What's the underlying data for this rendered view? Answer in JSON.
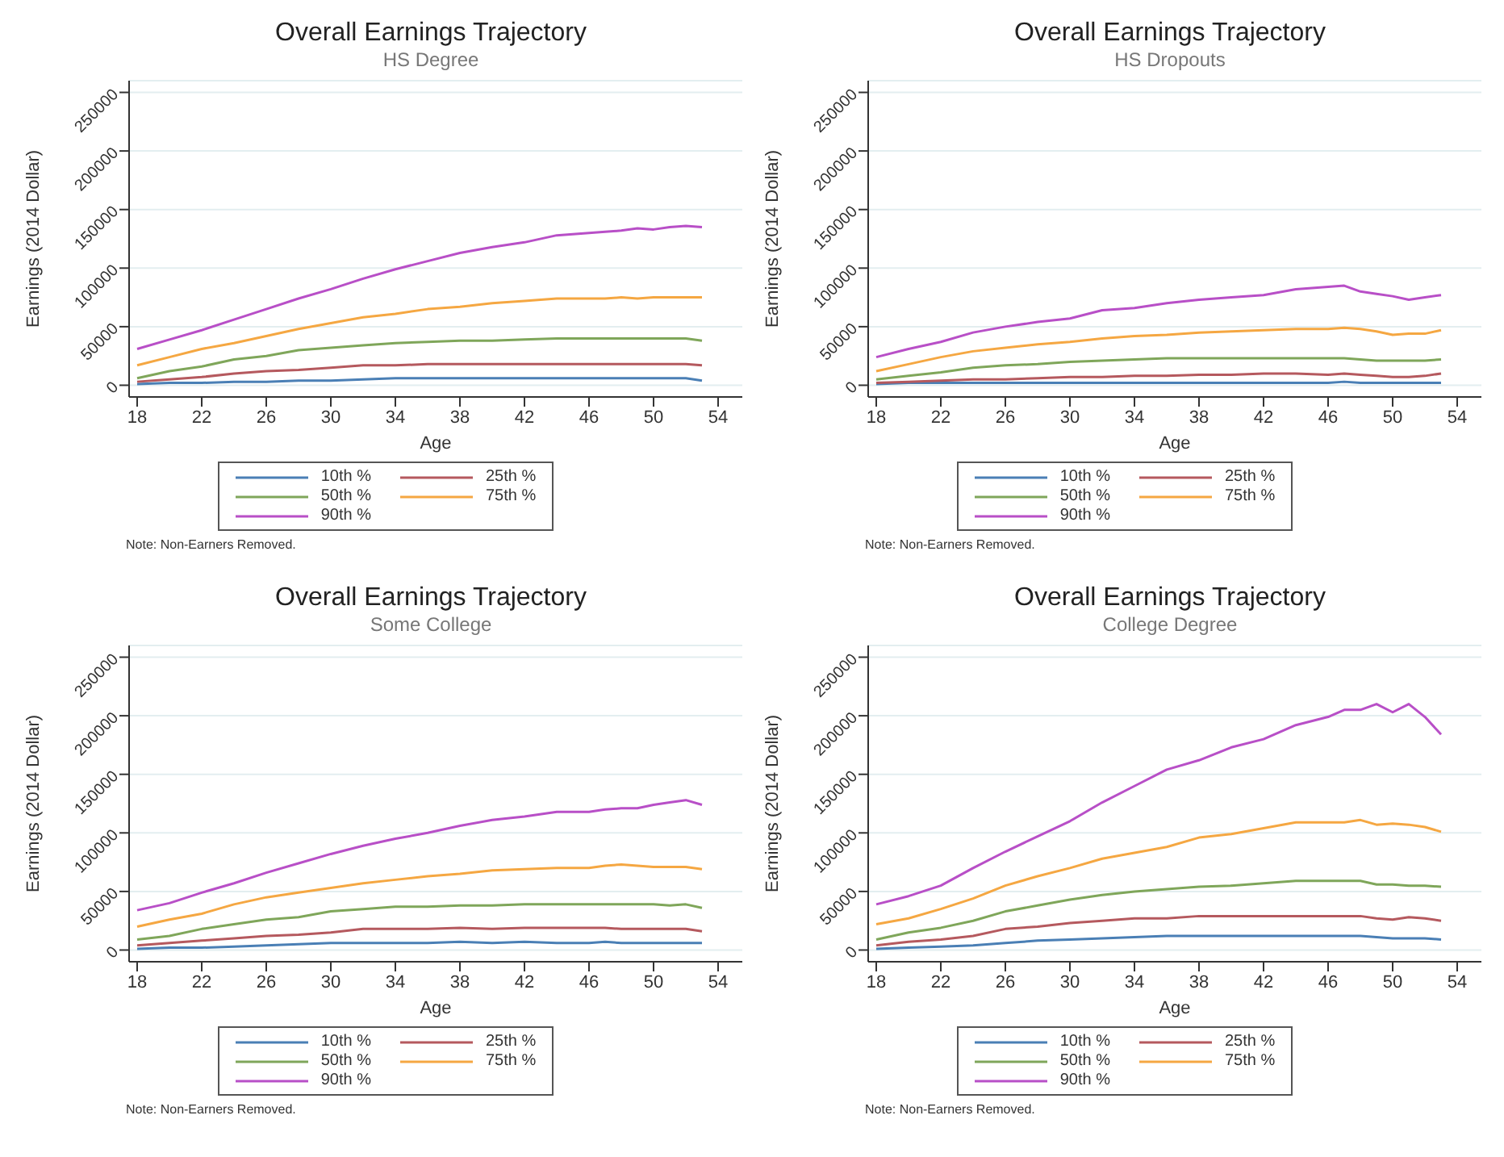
{
  "chart_data": [
    {
      "type": "line",
      "title": "Overall Earnings Trajectory",
      "subtitle": "HS Degree",
      "xlabel": "Age",
      "ylabel": "Earnings (2014 Dollar)",
      "annotations": [
        "Note: Non-Earners Removed."
      ],
      "x": [
        18,
        20,
        22,
        24,
        26,
        28,
        30,
        32,
        34,
        36,
        38,
        40,
        42,
        44,
        46,
        47,
        48,
        49,
        50,
        51,
        52,
        53
      ],
      "xlim": [
        17.5,
        55.5
      ],
      "xticks": [
        18,
        22,
        26,
        30,
        34,
        38,
        42,
        46,
        50,
        54
      ],
      "ylim": [
        -10000,
        260000
      ],
      "yticks": [
        0,
        50000,
        100000,
        150000,
        200000,
        250000
      ],
      "grid": "y",
      "legend": "bottom",
      "marker": "none",
      "series": [
        {
          "name": "10th %",
          "color": "#4a7fb5",
          "values": [
            1000,
            2000,
            2000,
            3000,
            3000,
            4000,
            4000,
            5000,
            6000,
            6000,
            6000,
            6000,
            6000,
            6000,
            6000,
            6000,
            6000,
            6000,
            6000,
            6000,
            6000,
            4000
          ]
        },
        {
          "name": "25th %",
          "color": "#b5595e",
          "values": [
            3000,
            5000,
            7000,
            10000,
            12000,
            13000,
            15000,
            17000,
            17000,
            18000,
            18000,
            18000,
            18000,
            18000,
            18000,
            18000,
            18000,
            18000,
            18000,
            18000,
            18000,
            17000
          ]
        },
        {
          "name": "50th %",
          "color": "#7fa65a",
          "values": [
            6000,
            12000,
            16000,
            22000,
            25000,
            30000,
            32000,
            34000,
            36000,
            37000,
            38000,
            38000,
            39000,
            40000,
            40000,
            40000,
            40000,
            40000,
            40000,
            40000,
            40000,
            38000
          ]
        },
        {
          "name": "75th %",
          "color": "#f5a742",
          "values": [
            17000,
            24000,
            31000,
            36000,
            42000,
            48000,
            53000,
            58000,
            61000,
            65000,
            67000,
            70000,
            72000,
            74000,
            74000,
            74000,
            75000,
            74000,
            75000,
            75000,
            75000,
            75000
          ]
        },
        {
          "name": "90th %",
          "color": "#b84fc7",
          "values": [
            31000,
            39000,
            47000,
            56000,
            65000,
            74000,
            82000,
            91000,
            99000,
            106000,
            113000,
            118000,
            122000,
            128000,
            130000,
            131000,
            132000,
            134000,
            133000,
            135000,
            136000,
            135000
          ]
        }
      ]
    },
    {
      "type": "line",
      "title": "Overall Earnings Trajectory",
      "subtitle": "HS Dropouts",
      "xlabel": "Age",
      "ylabel": "Earnings (2014 Dollar)",
      "annotations": [
        "Note: Non-Earners Removed."
      ],
      "x": [
        18,
        20,
        22,
        24,
        26,
        28,
        30,
        32,
        34,
        36,
        38,
        40,
        42,
        44,
        46,
        47,
        48,
        49,
        50,
        51,
        52,
        53
      ],
      "xlim": [
        17.5,
        55.5
      ],
      "xticks": [
        18,
        22,
        26,
        30,
        34,
        38,
        42,
        46,
        50,
        54
      ],
      "ylim": [
        -10000,
        260000
      ],
      "yticks": [
        0,
        50000,
        100000,
        150000,
        200000,
        250000
      ],
      "grid": "y",
      "legend": "bottom",
      "marker": "none",
      "series": [
        {
          "name": "10th %",
          "color": "#4a7fb5",
          "values": [
            1000,
            2000,
            2000,
            2000,
            2000,
            2000,
            2000,
            2000,
            2000,
            2000,
            2000,
            2000,
            2000,
            2000,
            2000,
            3000,
            2000,
            2000,
            2000,
            2000,
            2000,
            2000
          ]
        },
        {
          "name": "25th %",
          "color": "#b5595e",
          "values": [
            2000,
            3000,
            4000,
            5000,
            5000,
            6000,
            7000,
            7000,
            8000,
            8000,
            9000,
            9000,
            10000,
            10000,
            9000,
            10000,
            9000,
            8000,
            7000,
            7000,
            8000,
            10000
          ]
        },
        {
          "name": "50th %",
          "color": "#7fa65a",
          "values": [
            5000,
            8000,
            11000,
            15000,
            17000,
            18000,
            20000,
            21000,
            22000,
            23000,
            23000,
            23000,
            23000,
            23000,
            23000,
            23000,
            22000,
            21000,
            21000,
            21000,
            21000,
            22000
          ]
        },
        {
          "name": "75th %",
          "color": "#f5a742",
          "values": [
            12000,
            18000,
            24000,
            29000,
            32000,
            35000,
            37000,
            40000,
            42000,
            43000,
            45000,
            46000,
            47000,
            48000,
            48000,
            49000,
            48000,
            46000,
            43000,
            44000,
            44000,
            47000
          ]
        },
        {
          "name": "90th %",
          "color": "#b84fc7",
          "values": [
            24000,
            31000,
            37000,
            45000,
            50000,
            54000,
            57000,
            64000,
            66000,
            70000,
            73000,
            75000,
            77000,
            82000,
            84000,
            85000,
            80000,
            78000,
            76000,
            73000,
            75000,
            77000
          ]
        }
      ]
    },
    {
      "type": "line",
      "title": "Overall Earnings Trajectory",
      "subtitle": "Some College",
      "xlabel": "Age",
      "ylabel": "Earnings (2014 Dollar)",
      "annotations": [
        "Note: Non-Earners Removed."
      ],
      "x": [
        18,
        20,
        22,
        24,
        26,
        28,
        30,
        32,
        34,
        36,
        38,
        40,
        42,
        44,
        46,
        47,
        48,
        49,
        50,
        51,
        52,
        53
      ],
      "xlim": [
        17.5,
        55.5
      ],
      "xticks": [
        18,
        22,
        26,
        30,
        34,
        38,
        42,
        46,
        50,
        54
      ],
      "ylim": [
        -10000,
        260000
      ],
      "yticks": [
        0,
        50000,
        100000,
        150000,
        200000,
        250000
      ],
      "grid": "y",
      "legend": "bottom",
      "marker": "none",
      "series": [
        {
          "name": "10th %",
          "color": "#4a7fb5",
          "values": [
            1000,
            2000,
            2000,
            3000,
            4000,
            5000,
            6000,
            6000,
            6000,
            6000,
            7000,
            6000,
            7000,
            6000,
            6000,
            7000,
            6000,
            6000,
            6000,
            6000,
            6000,
            6000
          ]
        },
        {
          "name": "25th %",
          "color": "#b5595e",
          "values": [
            4000,
            6000,
            8000,
            10000,
            12000,
            13000,
            15000,
            18000,
            18000,
            18000,
            19000,
            18000,
            19000,
            19000,
            19000,
            19000,
            18000,
            18000,
            18000,
            18000,
            18000,
            16000
          ]
        },
        {
          "name": "50th %",
          "color": "#7fa65a",
          "values": [
            9000,
            12000,
            18000,
            22000,
            26000,
            28000,
            33000,
            35000,
            37000,
            37000,
            38000,
            38000,
            39000,
            39000,
            39000,
            39000,
            39000,
            39000,
            39000,
            38000,
            39000,
            36000
          ]
        },
        {
          "name": "75th %",
          "color": "#f5a742",
          "values": [
            20000,
            26000,
            31000,
            39000,
            45000,
            49000,
            53000,
            57000,
            60000,
            63000,
            65000,
            68000,
            69000,
            70000,
            70000,
            72000,
            73000,
            72000,
            71000,
            71000,
            71000,
            69000
          ]
        },
        {
          "name": "90th %",
          "color": "#b84fc7",
          "values": [
            34000,
            40000,
            49000,
            57000,
            66000,
            74000,
            82000,
            89000,
            95000,
            100000,
            106000,
            111000,
            114000,
            118000,
            118000,
            120000,
            121000,
            121000,
            124000,
            126000,
            128000,
            124000
          ]
        }
      ]
    },
    {
      "type": "line",
      "title": "Overall Earnings Trajectory",
      "subtitle": "College Degree",
      "xlabel": "Age",
      "ylabel": "Earnings (2014 Dollar)",
      "annotations": [
        "Note: Non-Earners Removed."
      ],
      "x": [
        18,
        20,
        22,
        24,
        26,
        28,
        30,
        32,
        34,
        36,
        38,
        40,
        42,
        44,
        46,
        47,
        48,
        49,
        50,
        51,
        52,
        53
      ],
      "xlim": [
        17.5,
        55.5
      ],
      "xticks": [
        18,
        22,
        26,
        30,
        34,
        38,
        42,
        46,
        50,
        54
      ],
      "ylim": [
        -10000,
        260000
      ],
      "yticks": [
        0,
        50000,
        100000,
        150000,
        200000,
        250000
      ],
      "grid": "y",
      "legend": "bottom",
      "marker": "none",
      "series": [
        {
          "name": "10th %",
          "color": "#4a7fb5",
          "values": [
            1000,
            2000,
            3000,
            4000,
            6000,
            8000,
            9000,
            10000,
            11000,
            12000,
            12000,
            12000,
            12000,
            12000,
            12000,
            12000,
            12000,
            11000,
            10000,
            10000,
            10000,
            9000
          ]
        },
        {
          "name": "25th %",
          "color": "#b5595e",
          "values": [
            4000,
            7000,
            9000,
            12000,
            18000,
            20000,
            23000,
            25000,
            27000,
            27000,
            29000,
            29000,
            29000,
            29000,
            29000,
            29000,
            29000,
            27000,
            26000,
            28000,
            27000,
            25000
          ]
        },
        {
          "name": "50th %",
          "color": "#7fa65a",
          "values": [
            9000,
            15000,
            19000,
            25000,
            33000,
            38000,
            43000,
            47000,
            50000,
            52000,
            54000,
            55000,
            57000,
            59000,
            59000,
            59000,
            59000,
            56000,
            56000,
            55000,
            55000,
            54000
          ]
        },
        {
          "name": "75th %",
          "color": "#f5a742",
          "values": [
            22000,
            27000,
            35000,
            44000,
            55000,
            63000,
            70000,
            78000,
            83000,
            88000,
            96000,
            99000,
            104000,
            109000,
            109000,
            109000,
            111000,
            107000,
            108000,
            107000,
            105000,
            101000
          ]
        },
        {
          "name": "90th %",
          "color": "#b84fc7",
          "values": [
            39000,
            46000,
            55000,
            70000,
            84000,
            97000,
            110000,
            126000,
            140000,
            154000,
            162000,
            173000,
            180000,
            192000,
            199000,
            205000,
            205000,
            210000,
            203000,
            210000,
            199000,
            184000
          ]
        }
      ]
    }
  ]
}
